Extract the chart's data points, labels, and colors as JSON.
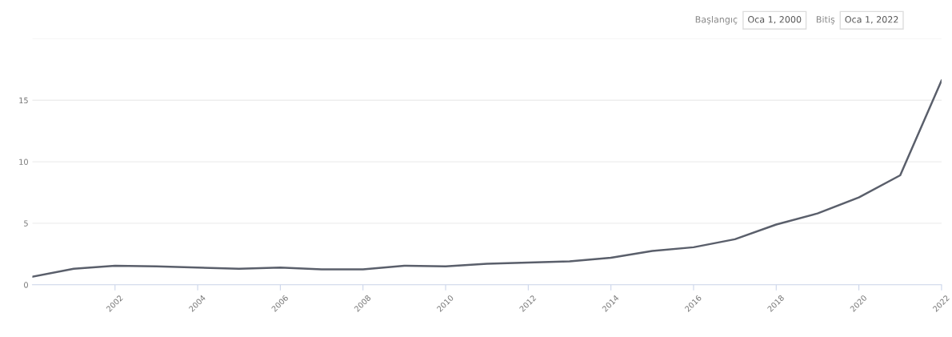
{
  "chart_data": {
    "type": "line",
    "x": [
      2000,
      2001,
      2002,
      2003,
      2004,
      2005,
      2006,
      2007,
      2008,
      2009,
      2010,
      2011,
      2012,
      2013,
      2014,
      2015,
      2016,
      2017,
      2018,
      2019,
      2020,
      2021,
      2022
    ],
    "series": [
      {
        "color": "#5a5f6b",
        "values": [
          0.65,
          1.3,
          1.55,
          1.5,
          1.4,
          1.3,
          1.4,
          1.25,
          1.25,
          1.55,
          1.5,
          1.7,
          1.8,
          1.9,
          2.2,
          2.75,
          3.05,
          3.7,
          4.9,
          5.8,
          7.1,
          8.9,
          16.6
        ]
      }
    ],
    "xlim": [
      2000,
      2022
    ],
    "xticks": [
      2002,
      2004,
      2006,
      2008,
      2010,
      2012,
      2014,
      2016,
      2018,
      2020,
      2022
    ],
    "ylim": [
      0,
      20
    ],
    "yticks": [
      0,
      5,
      10,
      15,
      {
        "value": 20,
        "label": null
      }
    ],
    "grid": "y",
    "marker": "none",
    "line_style": "solid",
    "annotations": [
      "Başlangıç",
      "Oca 1, 2000",
      "Bitiş",
      "Oca 1, 2022"
    ]
  }
}
